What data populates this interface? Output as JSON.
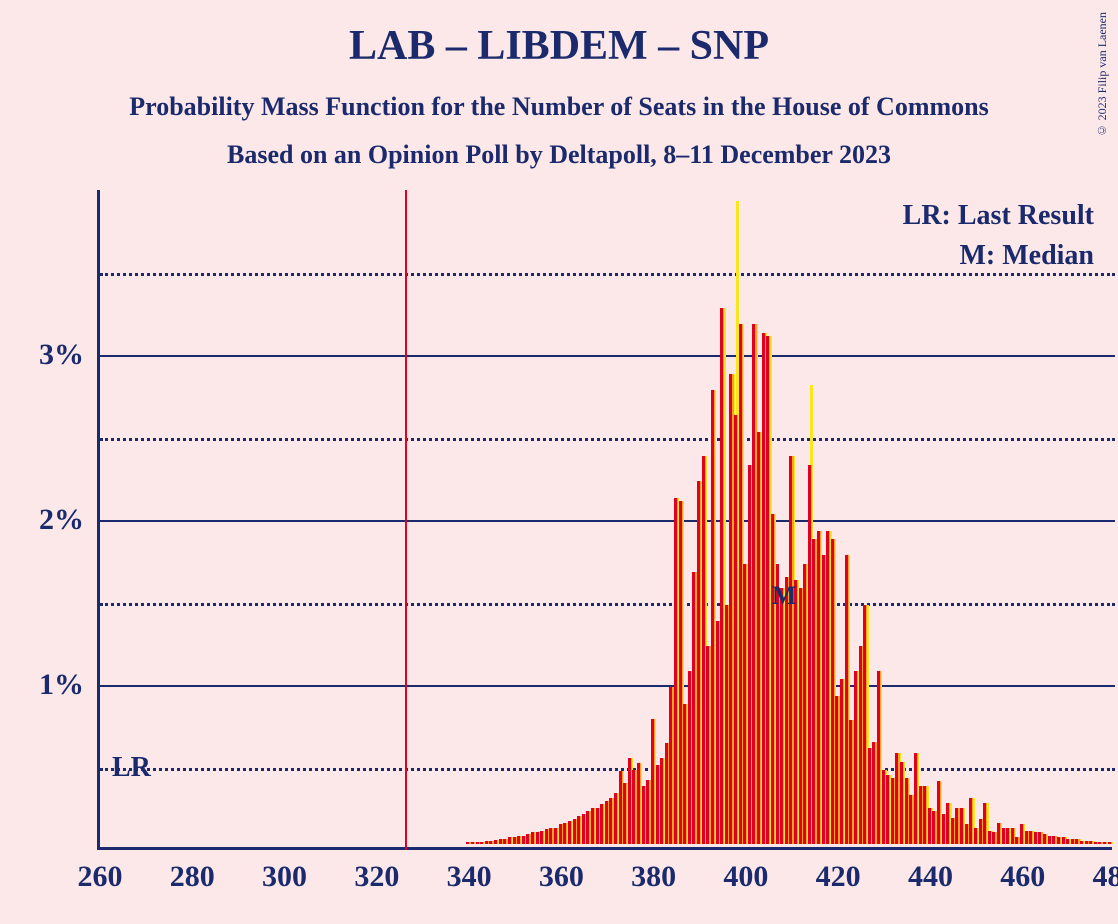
{
  "copyright": "© 2023 Filip van Laenen",
  "title": "LAB – LIBDEM – SNP",
  "subtitle1": "Probability Mass Function for the Number of Seats in the House of Commons",
  "subtitle2": "Based on an Opinion Poll by Deltapoll, 8–11 December 2023",
  "lr_text": "LR",
  "legend_lr": "LR: Last Result",
  "legend_m": "M: Median",
  "m_label": "M",
  "chart": {
    "type": "bar",
    "background_color": "#fce8e8",
    "axis_color": "#1a2a6c",
    "text_color": "#1a2a6c",
    "title_fontsize": 42,
    "subtitle_fontsize": 26,
    "label_fontsize": 30,
    "legend_fontsize": 28,
    "bar_colors": [
      "#e00020",
      "#f5a623",
      "#f8e71c"
    ],
    "xlim": [
      260,
      480
    ],
    "ylim": [
      0,
      4.0
    ],
    "xtick_step": 20,
    "xticks": [
      260,
      280,
      300,
      320,
      340,
      360,
      380,
      400,
      420,
      440,
      460,
      480
    ],
    "yticks_solid": [
      1,
      2,
      3
    ],
    "yticks_dotted": [
      0.5,
      1.5,
      2.5,
      3.5
    ],
    "ylabels": {
      "1": "1%",
      "2": "2%",
      "3": "3%"
    },
    "lr_value": 326,
    "median_value": 408,
    "bars": [
      {
        "x": 340,
        "v": [
          0.01,
          0.01,
          0.01
        ]
      },
      {
        "x": 341,
        "v": [
          0.01,
          0.01,
          0.01
        ]
      },
      {
        "x": 342,
        "v": [
          0.015,
          0.015,
          0.015
        ]
      },
      {
        "x": 343,
        "v": [
          0.015,
          0.015,
          0.015
        ]
      },
      {
        "x": 344,
        "v": [
          0.02,
          0.02,
          0.02
        ]
      },
      {
        "x": 345,
        "v": [
          0.02,
          0.02,
          0.02
        ]
      },
      {
        "x": 346,
        "v": [
          0.025,
          0.025,
          0.025
        ]
      },
      {
        "x": 347,
        "v": [
          0.03,
          0.03,
          0.03
        ]
      },
      {
        "x": 348,
        "v": [
          0.03,
          0.03,
          0.03
        ]
      },
      {
        "x": 349,
        "v": [
          0.04,
          0.04,
          0.04
        ]
      },
      {
        "x": 350,
        "v": [
          0.04,
          0.04,
          0.04
        ]
      },
      {
        "x": 351,
        "v": [
          0.05,
          0.05,
          0.05
        ]
      },
      {
        "x": 352,
        "v": [
          0.05,
          0.05,
          0.05
        ]
      },
      {
        "x": 353,
        "v": [
          0.06,
          0.06,
          0.06
        ]
      },
      {
        "x": 354,
        "v": [
          0.07,
          0.07,
          0.07
        ]
      },
      {
        "x": 355,
        "v": [
          0.07,
          0.07,
          0.07
        ]
      },
      {
        "x": 356,
        "v": [
          0.08,
          0.08,
          0.08
        ]
      },
      {
        "x": 357,
        "v": [
          0.09,
          0.09,
          0.09
        ]
      },
      {
        "x": 358,
        "v": [
          0.1,
          0.1,
          0.1
        ]
      },
      {
        "x": 359,
        "v": [
          0.1,
          0.1,
          0.1
        ]
      },
      {
        "x": 360,
        "v": [
          0.12,
          0.12,
          0.12
        ]
      },
      {
        "x": 361,
        "v": [
          0.13,
          0.13,
          0.13
        ]
      },
      {
        "x": 362,
        "v": [
          0.14,
          0.14,
          0.14
        ]
      },
      {
        "x": 363,
        "v": [
          0.15,
          0.15,
          0.15
        ]
      },
      {
        "x": 364,
        "v": [
          0.17,
          0.17,
          0.17
        ]
      },
      {
        "x": 365,
        "v": [
          0.18,
          0.18,
          0.18
        ]
      },
      {
        "x": 366,
        "v": [
          0.2,
          0.2,
          0.2
        ]
      },
      {
        "x": 367,
        "v": [
          0.22,
          0.22,
          0.22
        ]
      },
      {
        "x": 368,
        "v": [
          0.22,
          0.22,
          0.22
        ]
      },
      {
        "x": 369,
        "v": [
          0.24,
          0.24,
          0.24
        ]
      },
      {
        "x": 370,
        "v": [
          0.26,
          0.26,
          0.26
        ]
      },
      {
        "x": 371,
        "v": [
          0.28,
          0.28,
          0.28
        ]
      },
      {
        "x": 372,
        "v": [
          0.31,
          0.31,
          0.31
        ]
      },
      {
        "x": 373,
        "v": [
          0.44,
          0.44,
          0.44
        ]
      },
      {
        "x": 374,
        "v": [
          0.37,
          0.37,
          0.37
        ]
      },
      {
        "x": 375,
        "v": [
          0.52,
          0.52,
          0.52
        ]
      },
      {
        "x": 376,
        "v": [
          0.45,
          0.45,
          0.45
        ]
      },
      {
        "x": 377,
        "v": [
          0.49,
          0.49,
          0.49
        ]
      },
      {
        "x": 378,
        "v": [
          0.35,
          0.35,
          0.35
        ]
      },
      {
        "x": 379,
        "v": [
          0.39,
          0.39,
          0.39
        ]
      },
      {
        "x": 380,
        "v": [
          0.76,
          0.76,
          0.76
        ]
      },
      {
        "x": 381,
        "v": [
          0.48,
          0.48,
          0.48
        ]
      },
      {
        "x": 382,
        "v": [
          0.52,
          0.52,
          0.52
        ]
      },
      {
        "x": 383,
        "v": [
          0.61,
          0.61,
          0.61
        ]
      },
      {
        "x": 384,
        "v": [
          0.95,
          0.95,
          0.95
        ]
      },
      {
        "x": 385,
        "v": [
          2.1,
          2.1,
          2.1
        ]
      },
      {
        "x": 386,
        "v": [
          2.08,
          2.08,
          2.08
        ]
      },
      {
        "x": 387,
        "v": [
          0.85,
          0.85,
          0.85
        ]
      },
      {
        "x": 388,
        "v": [
          1.05,
          1.05,
          1.05
        ]
      },
      {
        "x": 389,
        "v": [
          1.65,
          1.65,
          1.65
        ]
      },
      {
        "x": 390,
        "v": [
          2.2,
          2.2,
          2.2
        ]
      },
      {
        "x": 391,
        "v": [
          2.35,
          2.35,
          2.35
        ]
      },
      {
        "x": 392,
        "v": [
          1.2,
          1.2,
          1.2
        ]
      },
      {
        "x": 393,
        "v": [
          2.75,
          2.75,
          2.75
        ]
      },
      {
        "x": 394,
        "v": [
          1.35,
          1.35,
          1.35
        ]
      },
      {
        "x": 395,
        "v": [
          3.25,
          3.25,
          3.25
        ]
      },
      {
        "x": 396,
        "v": [
          1.45,
          1.45,
          1.45
        ]
      },
      {
        "x": 397,
        "v": [
          2.85,
          2.85,
          2.85
        ]
      },
      {
        "x": 398,
        "v": [
          2.6,
          2.6,
          3.9
        ]
      },
      {
        "x": 399,
        "v": [
          3.15,
          3.15,
          3.15
        ]
      },
      {
        "x": 400,
        "v": [
          1.7,
          1.7,
          1.7
        ]
      },
      {
        "x": 401,
        "v": [
          2.3,
          2.3,
          2.3
        ]
      },
      {
        "x": 402,
        "v": [
          3.15,
          3.15,
          3.15
        ]
      },
      {
        "x": 403,
        "v": [
          2.5,
          2.5,
          2.5
        ]
      },
      {
        "x": 404,
        "v": [
          3.1,
          3.1,
          3.1
        ]
      },
      {
        "x": 405,
        "v": [
          3.08,
          3.08,
          3.08
        ]
      },
      {
        "x": 406,
        "v": [
          2.0,
          2.0,
          2.0
        ]
      },
      {
        "x": 407,
        "v": [
          1.7,
          1.55,
          1.55
        ]
      },
      {
        "x": 408,
        "v": [
          1.55,
          1.55,
          1.55
        ]
      },
      {
        "x": 409,
        "v": [
          1.62,
          1.62,
          1.62
        ]
      },
      {
        "x": 410,
        "v": [
          2.35,
          2.35,
          2.35
        ]
      },
      {
        "x": 411,
        "v": [
          1.6,
          1.6,
          1.6
        ]
      },
      {
        "x": 412,
        "v": [
          1.55,
          1.55,
          1.55
        ]
      },
      {
        "x": 413,
        "v": [
          1.7,
          1.7,
          1.7
        ]
      },
      {
        "x": 414,
        "v": [
          2.3,
          2.3,
          2.78
        ]
      },
      {
        "x": 415,
        "v": [
          1.85,
          1.85,
          1.85
        ]
      },
      {
        "x": 416,
        "v": [
          1.9,
          1.9,
          1.9
        ]
      },
      {
        "x": 417,
        "v": [
          1.75,
          1.75,
          1.75
        ]
      },
      {
        "x": 418,
        "v": [
          1.9,
          1.9,
          1.9
        ]
      },
      {
        "x": 419,
        "v": [
          1.85,
          1.85,
          1.85
        ]
      },
      {
        "x": 420,
        "v": [
          0.9,
          0.9,
          0.9
        ]
      },
      {
        "x": 421,
        "v": [
          1.0,
          1.0,
          1.0
        ]
      },
      {
        "x": 422,
        "v": [
          1.75,
          1.75,
          1.75
        ]
      },
      {
        "x": 423,
        "v": [
          0.75,
          0.75,
          0.75
        ]
      },
      {
        "x": 424,
        "v": [
          1.05,
          1.05,
          1.05
        ]
      },
      {
        "x": 425,
        "v": [
          1.2,
          1.2,
          1.2
        ]
      },
      {
        "x": 426,
        "v": [
          1.45,
          1.45,
          1.45
        ]
      },
      {
        "x": 427,
        "v": [
          0.58,
          0.58,
          0.58
        ]
      },
      {
        "x": 428,
        "v": [
          0.62,
          0.62,
          0.62
        ]
      },
      {
        "x": 429,
        "v": [
          1.05,
          1.05,
          1.05
        ]
      },
      {
        "x": 430,
        "v": [
          0.45,
          0.45,
          0.45
        ]
      },
      {
        "x": 431,
        "v": [
          0.42,
          0.42,
          0.42
        ]
      },
      {
        "x": 432,
        "v": [
          0.4,
          0.4,
          0.4
        ]
      },
      {
        "x": 433,
        "v": [
          0.55,
          0.55,
          0.55
        ]
      },
      {
        "x": 434,
        "v": [
          0.5,
          0.5,
          0.5
        ]
      },
      {
        "x": 435,
        "v": [
          0.4,
          0.4,
          0.4
        ]
      },
      {
        "x": 436,
        "v": [
          0.3,
          0.3,
          0.3
        ]
      },
      {
        "x": 437,
        "v": [
          0.55,
          0.55,
          0.55
        ]
      },
      {
        "x": 438,
        "v": [
          0.35,
          0.35,
          0.35
        ]
      },
      {
        "x": 439,
        "v": [
          0.35,
          0.35,
          0.35
        ]
      },
      {
        "x": 440,
        "v": [
          0.22,
          0.22,
          0.22
        ]
      },
      {
        "x": 441,
        "v": [
          0.2,
          0.2,
          0.2
        ]
      },
      {
        "x": 442,
        "v": [
          0.38,
          0.38,
          0.38
        ]
      },
      {
        "x": 443,
        "v": [
          0.18,
          0.18,
          0.18
        ]
      },
      {
        "x": 444,
        "v": [
          0.25,
          0.25,
          0.25
        ]
      },
      {
        "x": 445,
        "v": [
          0.16,
          0.16,
          0.16
        ]
      },
      {
        "x": 446,
        "v": [
          0.22,
          0.22,
          0.22
        ]
      },
      {
        "x": 447,
        "v": [
          0.22,
          0.22,
          0.22
        ]
      },
      {
        "x": 448,
        "v": [
          0.12,
          0.12,
          0.12
        ]
      },
      {
        "x": 449,
        "v": [
          0.28,
          0.28,
          0.28
        ]
      },
      {
        "x": 450,
        "v": [
          0.1,
          0.1,
          0.1
        ]
      },
      {
        "x": 451,
        "v": [
          0.15,
          0.15,
          0.15
        ]
      },
      {
        "x": 452,
        "v": [
          0.25,
          0.25,
          0.25
        ]
      },
      {
        "x": 453,
        "v": [
          0.08,
          0.08,
          0.08
        ]
      },
      {
        "x": 454,
        "v": [
          0.07,
          0.07,
          0.07
        ]
      },
      {
        "x": 455,
        "v": [
          0.13,
          0.13,
          0.13
        ]
      },
      {
        "x": 456,
        "v": [
          0.1,
          0.1,
          0.1
        ]
      },
      {
        "x": 457,
        "v": [
          0.1,
          0.1,
          0.1
        ]
      },
      {
        "x": 458,
        "v": [
          0.1,
          0.1,
          0.1
        ]
      },
      {
        "x": 459,
        "v": [
          0.04,
          0.04,
          0.04
        ]
      },
      {
        "x": 460,
        "v": [
          0.12,
          0.12,
          0.12
        ]
      },
      {
        "x": 461,
        "v": [
          0.08,
          0.08,
          0.08
        ]
      },
      {
        "x": 462,
        "v": [
          0.08,
          0.08,
          0.08
        ]
      },
      {
        "x": 463,
        "v": [
          0.07,
          0.07,
          0.07
        ]
      },
      {
        "x": 464,
        "v": [
          0.07,
          0.07,
          0.07
        ]
      },
      {
        "x": 465,
        "v": [
          0.06,
          0.06,
          0.06
        ]
      },
      {
        "x": 466,
        "v": [
          0.05,
          0.05,
          0.05
        ]
      },
      {
        "x": 467,
        "v": [
          0.05,
          0.05,
          0.05
        ]
      },
      {
        "x": 468,
        "v": [
          0.04,
          0.04,
          0.04
        ]
      },
      {
        "x": 469,
        "v": [
          0.04,
          0.04,
          0.04
        ]
      },
      {
        "x": 470,
        "v": [
          0.03,
          0.03,
          0.03
        ]
      },
      {
        "x": 471,
        "v": [
          0.03,
          0.03,
          0.03
        ]
      },
      {
        "x": 472,
        "v": [
          0.03,
          0.03,
          0.03
        ]
      },
      {
        "x": 473,
        "v": [
          0.02,
          0.02,
          0.02
        ]
      },
      {
        "x": 474,
        "v": [
          0.02,
          0.02,
          0.02
        ]
      },
      {
        "x": 475,
        "v": [
          0.02,
          0.02,
          0.02
        ]
      },
      {
        "x": 476,
        "v": [
          0.015,
          0.015,
          0.015
        ]
      },
      {
        "x": 477,
        "v": [
          0.015,
          0.015,
          0.015
        ]
      },
      {
        "x": 478,
        "v": [
          0.01,
          0.01,
          0.01
        ]
      },
      {
        "x": 479,
        "v": [
          0.01,
          0.01,
          0.01
        ]
      }
    ]
  }
}
